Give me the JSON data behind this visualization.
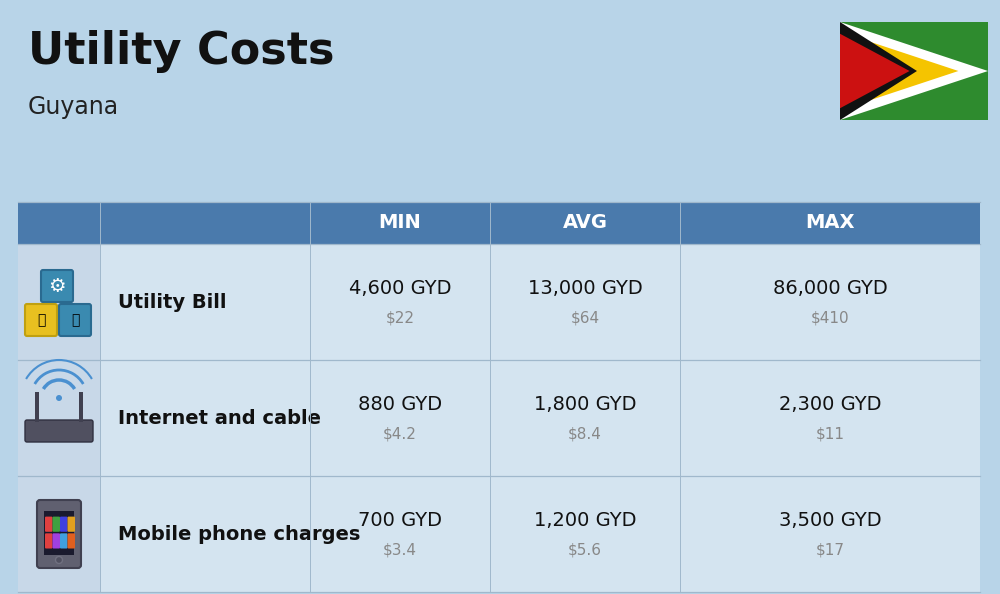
{
  "title": "Utility Costs",
  "subtitle": "Guyana",
  "background_color": "#b8d4e8",
  "header_bg_color": "#4a7aac",
  "header_text_color": "#ffffff",
  "row_bg_even": "#dce8f3",
  "row_bg_odd": "#cfdfe f",
  "icon_col_bg": "#b8d4e8",
  "columns": [
    "MIN",
    "AVG",
    "MAX"
  ],
  "rows": [
    {
      "label": "Utility Bill",
      "icon": "utility",
      "min_gyd": "4,600 GYD",
      "min_usd": "$22",
      "avg_gyd": "13,000 GYD",
      "avg_usd": "$64",
      "max_gyd": "86,000 GYD",
      "max_usd": "$410"
    },
    {
      "label": "Internet and cable",
      "icon": "internet",
      "min_gyd": "880 GYD",
      "min_usd": "$4.2",
      "avg_gyd": "1,800 GYD",
      "avg_usd": "$8.4",
      "max_gyd": "2,300 GYD",
      "max_usd": "$11"
    },
    {
      "label": "Mobile phone charges",
      "icon": "mobile",
      "min_gyd": "700 GYD",
      "min_usd": "$3.4",
      "avg_gyd": "1,200 GYD",
      "avg_usd": "$5.6",
      "max_gyd": "3,500 GYD",
      "max_usd": "$17"
    }
  ],
  "title_fontsize": 32,
  "subtitle_fontsize": 17,
  "header_fontsize": 14,
  "label_fontsize": 14,
  "value_fontsize": 14,
  "usd_fontsize": 11,
  "flag_green": "#2e8b2e",
  "flag_red": "#cc1111",
  "flag_yellow": "#f5c400",
  "flag_black": "#111111",
  "flag_white": "#ffffff"
}
